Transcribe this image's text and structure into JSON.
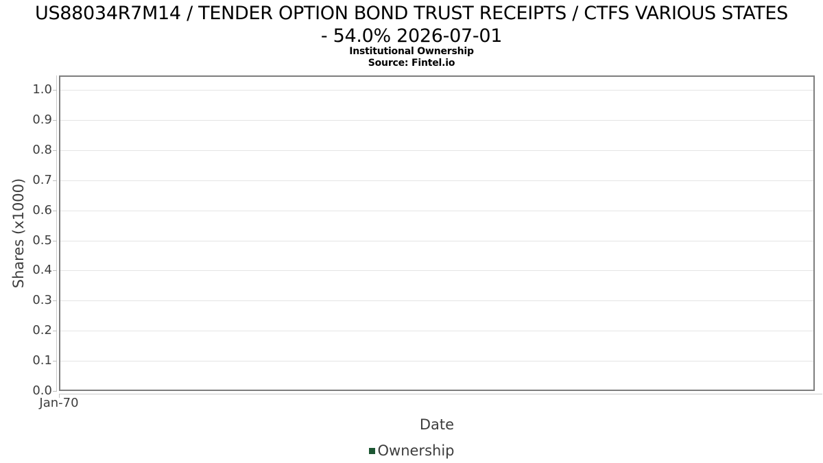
{
  "chart_data": {
    "type": "line",
    "title": "US88034R7M14 / TENDER OPTION BOND TRUST RECEIPTS / CTFS VARIOUS STATES - 54.0% 2026-07-01",
    "title_line1": "US88034R7M14 / TENDER OPTION BOND TRUST RECEIPTS / CTFS VARIOUS STATES",
    "title_line2": "- 54.0% 2026-07-01",
    "subtitle": "Institutional Ownership",
    "source": "Source: Fintel.io",
    "xlabel": "Date",
    "ylabel": "Shares (x1000)",
    "x_tick_labels": [
      "Jan-70"
    ],
    "y_tick_labels": [
      "1.0",
      "0.9",
      "0.8",
      "0.7",
      "0.6",
      "0.5",
      "0.4",
      "0.3",
      "0.2",
      "0.1",
      "0.0"
    ],
    "ylim": [
      0.0,
      1.05
    ],
    "grid": "horizontal",
    "legend_position": "bottom-center",
    "series": [
      {
        "name": "Ownership",
        "color": "#1d5733",
        "x": [],
        "values": []
      }
    ]
  },
  "colors": {
    "background": "#ffffff",
    "title_text": "#000000",
    "axis_text": "#3d3d3d",
    "plot_border": "#7d7d7d",
    "gridline": "#e4e4e4",
    "axis_line": "#c9c9c9",
    "tick": "#bdbdbd",
    "legend_swatch": "#1d5733"
  }
}
